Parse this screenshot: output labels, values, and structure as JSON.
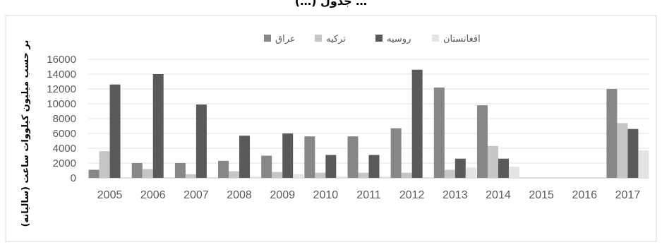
{
  "chart_data": {
    "type": "bar",
    "title": "(…) ﺟﺪول …",
    "ylabel": "(سالیانه) بر حسب میلیون کیلووات ساعت",
    "xlabel": "",
    "categories": [
      "2005",
      "2006",
      "2007",
      "2008",
      "2009",
      "2010",
      "2011",
      "2012",
      "2013",
      "2014",
      "2015",
      "2016",
      "2017"
    ],
    "ylim": [
      0,
      16000
    ],
    "yticks": [
      "0",
      "2000",
      "4000",
      "6000",
      "8000",
      "10000",
      "12000",
      "14000",
      "16000"
    ],
    "grid": "horizontal",
    "legend_position": "top",
    "series": [
      {
        "name": "عراق",
        "color": "#878787",
        "values": [
          1100,
          2000,
          2000,
          2300,
          3000,
          5600,
          5600,
          6700,
          12200,
          9800,
          0,
          0,
          12000
        ]
      },
      {
        "name": "ترکیه",
        "color": "#c6c6c6",
        "values": [
          3600,
          1200,
          500,
          900,
          800,
          700,
          700,
          700,
          1100,
          4300,
          0,
          0,
          7400
        ]
      },
      {
        "name": "روسیه",
        "color": "#5a5a5a",
        "values": [
          12600,
          14000,
          9900,
          5700,
          6000,
          3100,
          3100,
          14600,
          2600,
          2600,
          0,
          0,
          6600
        ]
      },
      {
        "name": "افغانستان",
        "color": "#e4e4e4",
        "values": [
          100,
          100,
          100,
          200,
          500,
          200,
          200,
          100,
          1400,
          1500,
          0,
          0,
          3700
        ]
      }
    ]
  }
}
